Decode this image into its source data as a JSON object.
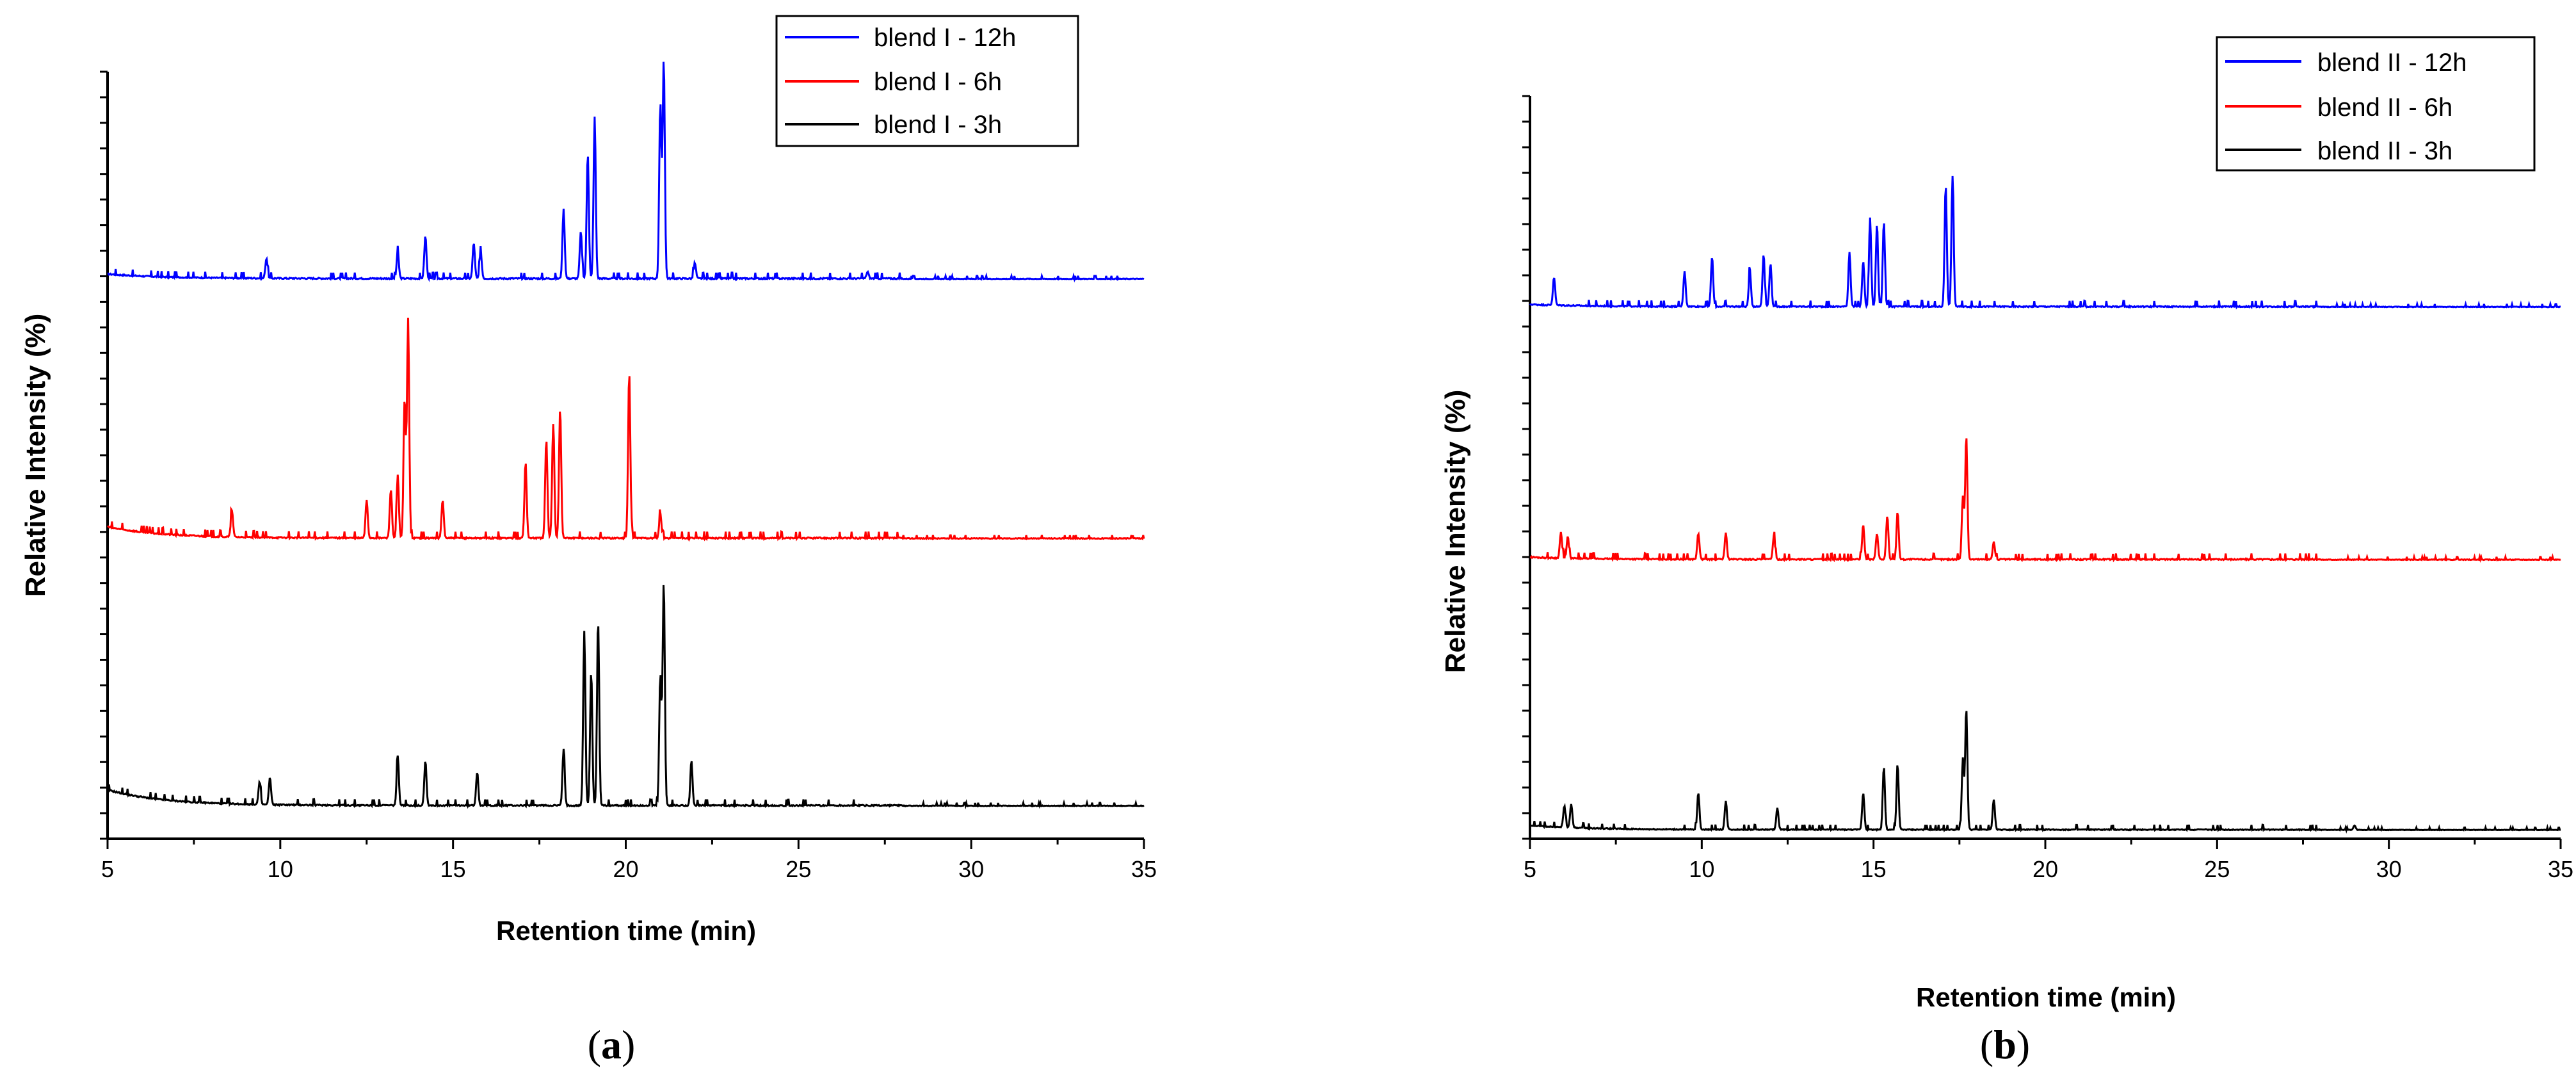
{
  "chart_data": [
    {
      "type": "line",
      "panel": "a",
      "caption_open": "(",
      "caption_letter": "a",
      "caption_close": ")",
      "xlabel": "Retention time (min)",
      "ylabel": "Relative Intensity (%)",
      "xlim": [
        5,
        35
      ],
      "xticks": [
        "5",
        "10",
        "15",
        "20",
        "25",
        "30",
        "35"
      ],
      "grid": false,
      "legend_position": "top-right",
      "series": [
        {
          "name": "blend I - 12h",
          "color": "#0000ff",
          "baseline": 0.16,
          "start_bump": 0.02,
          "noise": 0.012,
          "peaks": [
            [
              9.6,
              0.09
            ],
            [
              13.4,
              0.12
            ],
            [
              14.2,
              0.19
            ],
            [
              15.6,
              0.16
            ],
            [
              15.8,
              0.12
            ],
            [
              18.2,
              0.31
            ],
            [
              18.7,
              0.21
            ],
            [
              18.9,
              0.56
            ],
            [
              19.1,
              0.72
            ],
            [
              21.0,
              0.78
            ],
            [
              21.1,
              0.98
            ],
            [
              22.0,
              0.07
            ],
            [
              27.0,
              0.03
            ]
          ]
        },
        {
          "name": "blend I - 6h",
          "color": "#ff0000",
          "baseline": 0.11,
          "start_bump": 0.05,
          "noise": 0.013,
          "peaks": [
            [
              8.6,
              0.12
            ],
            [
              12.5,
              0.17
            ],
            [
              13.2,
              0.22
            ],
            [
              13.4,
              0.28
            ],
            [
              13.6,
              0.62
            ],
            [
              13.7,
              0.98
            ],
            [
              14.7,
              0.17
            ],
            [
              17.1,
              0.34
            ],
            [
              17.7,
              0.44
            ],
            [
              17.9,
              0.51
            ],
            [
              18.1,
              0.58
            ],
            [
              20.1,
              0.74
            ],
            [
              21.0,
              0.11
            ]
          ]
        },
        {
          "name": "blend I - 3h",
          "color": "#000000",
          "baseline": 0.02,
          "start_bump": 0.07,
          "noise": 0.012,
          "peaks": [
            [
              9.4,
              0.1
            ],
            [
              9.7,
              0.12
            ],
            [
              13.4,
              0.22
            ],
            [
              14.2,
              0.2
            ],
            [
              15.7,
              0.15
            ],
            [
              18.2,
              0.25
            ],
            [
              18.8,
              0.78
            ],
            [
              19.0,
              0.6
            ],
            [
              19.2,
              0.82
            ],
            [
              21.0,
              0.58
            ],
            [
              21.1,
              1.0
            ],
            [
              21.9,
              0.2
            ]
          ]
        }
      ]
    },
    {
      "type": "line",
      "panel": "b",
      "caption_open": "(",
      "caption_letter": "b",
      "caption_close": ")",
      "xlabel": "Retention time (min)",
      "ylabel": "Relative Intensity (%)",
      "xlim": [
        5,
        35
      ],
      "xticks": [
        "5",
        "10",
        "15",
        "20",
        "25",
        "30",
        "35"
      ],
      "grid": false,
      "legend_position": "top-right",
      "series": [
        {
          "name": "blend II - 12h",
          "color": "#0000ff",
          "baseline": 0.13,
          "start_bump": 0.01,
          "noise": 0.012,
          "peaks": [
            [
              5.7,
              0.13
            ],
            [
              9.5,
              0.16
            ],
            [
              10.3,
              0.23
            ],
            [
              11.4,
              0.17
            ],
            [
              11.8,
              0.24
            ],
            [
              12.0,
              0.2
            ],
            [
              14.3,
              0.25
            ],
            [
              14.7,
              0.21
            ],
            [
              14.9,
              0.41
            ],
            [
              15.1,
              0.38
            ],
            [
              15.3,
              0.39
            ],
            [
              17.1,
              0.56
            ],
            [
              17.3,
              0.6
            ]
          ]
        },
        {
          "name": "blend II - 6h",
          "color": "#ff0000",
          "baseline": 0.11,
          "start_bump": 0.01,
          "noise": 0.012,
          "peaks": [
            [
              5.9,
              0.12
            ],
            [
              6.1,
              0.1
            ],
            [
              9.9,
              0.12
            ],
            [
              10.7,
              0.12
            ],
            [
              12.1,
              0.11
            ],
            [
              14.7,
              0.16
            ],
            [
              15.1,
              0.12
            ],
            [
              15.4,
              0.2
            ],
            [
              15.7,
              0.22
            ],
            [
              17.6,
              0.29
            ],
            [
              17.7,
              0.57
            ],
            [
              18.5,
              0.08
            ]
          ]
        },
        {
          "name": "blend II - 3h",
          "color": "#000000",
          "baseline": 0.01,
          "start_bump": 0.02,
          "noise": 0.01,
          "peaks": [
            [
              6.0,
              0.1
            ],
            [
              6.2,
              0.11
            ],
            [
              9.9,
              0.17
            ],
            [
              10.7,
              0.13
            ],
            [
              12.2,
              0.1
            ],
            [
              14.7,
              0.17
            ],
            [
              15.3,
              0.29
            ],
            [
              15.7,
              0.3
            ],
            [
              17.6,
              0.33
            ],
            [
              17.7,
              0.56
            ],
            [
              18.5,
              0.14
            ],
            [
              29.0,
              0.02
            ]
          ]
        }
      ]
    }
  ]
}
